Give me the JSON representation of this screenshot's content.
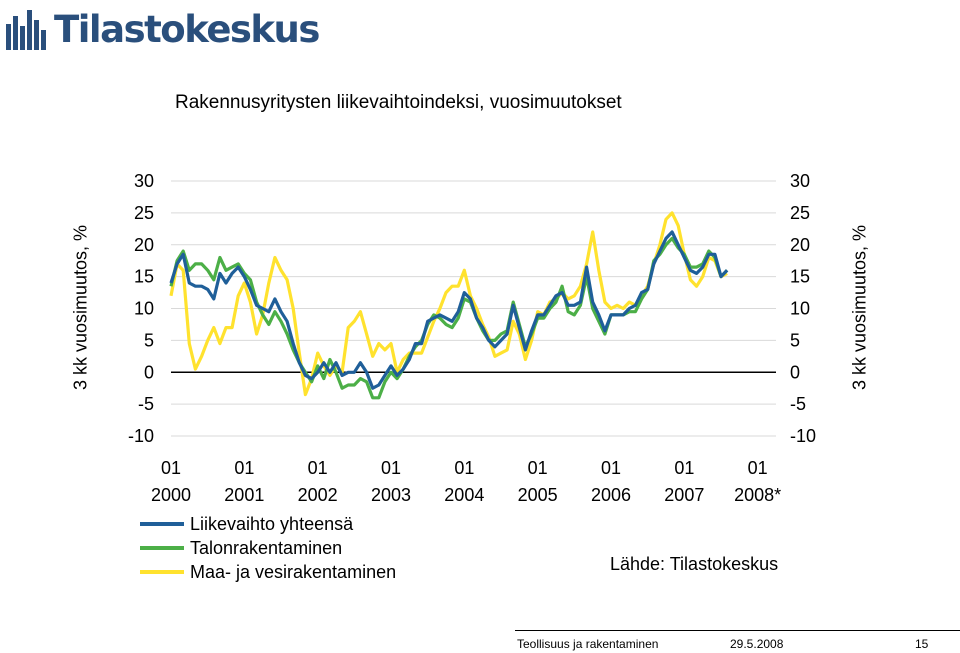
{
  "brand": {
    "name": "Tilastokeskus",
    "logo_color": "#2a4f7c"
  },
  "title": "Rakennusyritysten liikevaihtoindeksi, vuosimuutokset",
  "y_axis_left_label": "3 kk vuosimuutos, %",
  "y_axis_right_label": "3 kk vuosimuutos, %",
  "source": "Lähde: Tilastokeskus",
  "footer": {
    "section": "Teollisuus ja rakentaminen",
    "date": "29.5.2008",
    "page": "15"
  },
  "chart_data": {
    "type": "line",
    "title": "Rakennusyritysten liikevaihtoindeksi, vuosimuutokset",
    "ylabel": "3 kk vuosimuutos, %",
    "ylim": [
      -10,
      30
    ],
    "yticks": [
      "30",
      "25",
      "20",
      "15",
      "10",
      "5",
      "0",
      "-5",
      "-10"
    ],
    "xlim": [
      2000.0,
      2008.25
    ],
    "xticks": [
      {
        "month": "01",
        "year": "2000"
      },
      {
        "month": "01",
        "year": "2001"
      },
      {
        "month": "01",
        "year": "2002"
      },
      {
        "month": "01",
        "year": "2003"
      },
      {
        "month": "01",
        "year": "2004"
      },
      {
        "month": "01",
        "year": "2005"
      },
      {
        "month": "01",
        "year": "2006"
      },
      {
        "month": "01",
        "year": "2007"
      },
      {
        "month": "01",
        "year": "2008*"
      }
    ],
    "grid": "horizontal",
    "legend": "bottom-left",
    "series": [
      {
        "name": "Liikevaihto yhteensä",
        "color": "#1f5f99",
        "points": [
          [
            2000.0,
            14
          ],
          [
            2000.083,
            17
          ],
          [
            2000.167,
            18.5
          ],
          [
            2000.25,
            14
          ],
          [
            2000.333,
            13.5
          ],
          [
            2000.417,
            13.5
          ],
          [
            2000.5,
            13
          ],
          [
            2000.583,
            11.5
          ],
          [
            2000.667,
            15.5
          ],
          [
            2000.75,
            14
          ],
          [
            2000.833,
            15.5
          ],
          [
            2000.917,
            16.5
          ],
          [
            2001.0,
            15
          ],
          [
            2001.083,
            13
          ],
          [
            2001.167,
            10.5
          ],
          [
            2001.25,
            10
          ],
          [
            2001.333,
            9.5
          ],
          [
            2001.417,
            11.5
          ],
          [
            2001.5,
            9.5
          ],
          [
            2001.583,
            8
          ],
          [
            2001.667,
            4.5
          ],
          [
            2001.75,
            1.5
          ],
          [
            2001.833,
            -0.5
          ],
          [
            2001.917,
            -1
          ],
          [
            2002.0,
            0
          ],
          [
            2002.083,
            1.5
          ],
          [
            2002.167,
            0
          ],
          [
            2002.25,
            1.5
          ],
          [
            2002.333,
            -0.5
          ],
          [
            2002.417,
            0
          ],
          [
            2002.5,
            0
          ],
          [
            2002.583,
            1.5
          ],
          [
            2002.667,
            0
          ],
          [
            2002.75,
            -2.5
          ],
          [
            2002.833,
            -2
          ],
          [
            2002.917,
            -0.5
          ],
          [
            2003.0,
            1
          ],
          [
            2003.083,
            -0.5
          ],
          [
            2003.167,
            0.5
          ],
          [
            2003.25,
            2
          ],
          [
            2003.333,
            4.5
          ],
          [
            2003.417,
            4.5
          ],
          [
            2003.5,
            8
          ],
          [
            2003.583,
            8.5
          ],
          [
            2003.667,
            9
          ],
          [
            2003.75,
            8.5
          ],
          [
            2003.833,
            8
          ],
          [
            2003.917,
            9.5
          ],
          [
            2004.0,
            12.5
          ],
          [
            2004.083,
            11.5
          ],
          [
            2004.167,
            8.5
          ],
          [
            2004.25,
            7
          ],
          [
            2004.333,
            5
          ],
          [
            2004.417,
            4
          ],
          [
            2004.5,
            5
          ],
          [
            2004.583,
            6
          ],
          [
            2004.667,
            10.5
          ],
          [
            2004.75,
            7
          ],
          [
            2004.833,
            3.5
          ],
          [
            2004.917,
            6.5
          ],
          [
            2005.0,
            9
          ],
          [
            2005.083,
            9
          ],
          [
            2005.167,
            10.5
          ],
          [
            2005.25,
            12
          ],
          [
            2005.333,
            12.5
          ],
          [
            2005.417,
            10.5
          ],
          [
            2005.5,
            10.5
          ],
          [
            2005.583,
            11
          ],
          [
            2005.667,
            16.5
          ],
          [
            2005.75,
            11
          ],
          [
            2005.833,
            9
          ],
          [
            2005.917,
            6.5
          ],
          [
            2006.0,
            9
          ],
          [
            2006.083,
            9
          ],
          [
            2006.167,
            9
          ],
          [
            2006.25,
            10
          ],
          [
            2006.333,
            10.5
          ],
          [
            2006.417,
            12.5
          ],
          [
            2006.5,
            13
          ],
          [
            2006.583,
            17
          ],
          [
            2006.667,
            19
          ],
          [
            2006.75,
            21
          ],
          [
            2006.833,
            22
          ],
          [
            2006.917,
            20
          ],
          [
            2007.0,
            18
          ],
          [
            2007.083,
            16
          ],
          [
            2007.167,
            15.5
          ],
          [
            2007.25,
            16.5
          ],
          [
            2007.333,
            18.5
          ],
          [
            2007.417,
            18.5
          ],
          [
            2007.5,
            15
          ],
          [
            2007.583,
            16
          ]
        ]
      },
      {
        "name": "Talonrakentaminen",
        "color": "#4caf47",
        "points": [
          [
            2000.0,
            13.5
          ],
          [
            2000.083,
            17.5
          ],
          [
            2000.167,
            19
          ],
          [
            2000.25,
            16
          ],
          [
            2000.333,
            17
          ],
          [
            2000.417,
            17
          ],
          [
            2000.5,
            16
          ],
          [
            2000.583,
            14.5
          ],
          [
            2000.667,
            18
          ],
          [
            2000.75,
            16
          ],
          [
            2000.833,
            16.5
          ],
          [
            2000.917,
            17
          ],
          [
            2001.0,
            15.5
          ],
          [
            2001.083,
            14.5
          ],
          [
            2001.167,
            11
          ],
          [
            2001.25,
            9
          ],
          [
            2001.333,
            7.5
          ],
          [
            2001.417,
            9.5
          ],
          [
            2001.5,
            8
          ],
          [
            2001.583,
            6
          ],
          [
            2001.667,
            3.5
          ],
          [
            2001.75,
            1.5
          ],
          [
            2001.833,
            0
          ],
          [
            2001.917,
            -1.5
          ],
          [
            2002.0,
            1
          ],
          [
            2002.083,
            -1
          ],
          [
            2002.167,
            2
          ],
          [
            2002.25,
            0
          ],
          [
            2002.333,
            -2.5
          ],
          [
            2002.417,
            -2
          ],
          [
            2002.5,
            -2
          ],
          [
            2002.583,
            -1
          ],
          [
            2002.667,
            -1.5
          ],
          [
            2002.75,
            -4
          ],
          [
            2002.833,
            -4
          ],
          [
            2002.917,
            -1.5
          ],
          [
            2003.0,
            0
          ],
          [
            2003.083,
            -1
          ],
          [
            2003.167,
            0.5
          ],
          [
            2003.25,
            2.5
          ],
          [
            2003.333,
            4
          ],
          [
            2003.417,
            5
          ],
          [
            2003.5,
            7.5
          ],
          [
            2003.583,
            9
          ],
          [
            2003.667,
            8.5
          ],
          [
            2003.75,
            7.5
          ],
          [
            2003.833,
            7
          ],
          [
            2003.917,
            8.5
          ],
          [
            2004.0,
            11.5
          ],
          [
            2004.083,
            11
          ],
          [
            2004.167,
            8.5
          ],
          [
            2004.25,
            6.5
          ],
          [
            2004.333,
            5
          ],
          [
            2004.417,
            5
          ],
          [
            2004.5,
            6
          ],
          [
            2004.583,
            6.5
          ],
          [
            2004.667,
            11
          ],
          [
            2004.75,
            7.5
          ],
          [
            2004.833,
            4
          ],
          [
            2004.917,
            6
          ],
          [
            2005.0,
            8.5
          ],
          [
            2005.083,
            8.5
          ],
          [
            2005.167,
            10
          ],
          [
            2005.25,
            11
          ],
          [
            2005.333,
            13.5
          ],
          [
            2005.417,
            9.5
          ],
          [
            2005.5,
            9
          ],
          [
            2005.583,
            10.5
          ],
          [
            2005.667,
            15
          ],
          [
            2005.75,
            10
          ],
          [
            2005.833,
            8
          ],
          [
            2005.917,
            6
          ],
          [
            2006.0,
            9
          ],
          [
            2006.083,
            9
          ],
          [
            2006.167,
            9
          ],
          [
            2006.25,
            9.5
          ],
          [
            2006.333,
            9.5
          ],
          [
            2006.417,
            11.5
          ],
          [
            2006.5,
            13
          ],
          [
            2006.583,
            17.5
          ],
          [
            2006.667,
            18.5
          ],
          [
            2006.75,
            20
          ],
          [
            2006.833,
            21
          ],
          [
            2006.917,
            19.5
          ],
          [
            2007.0,
            18.5
          ],
          [
            2007.083,
            16.5
          ],
          [
            2007.167,
            16.5
          ],
          [
            2007.25,
            17
          ],
          [
            2007.333,
            19
          ],
          [
            2007.417,
            18
          ],
          [
            2007.5,
            15
          ],
          [
            2007.583,
            16
          ]
        ]
      },
      {
        "name": "Maa- ja vesirakentaminen",
        "color": "#ffe22e",
        "points": [
          [
            2000.0,
            12
          ],
          [
            2000.083,
            17
          ],
          [
            2000.167,
            16
          ],
          [
            2000.25,
            4.5
          ],
          [
            2000.333,
            0.5
          ],
          [
            2000.417,
            2.5
          ],
          [
            2000.5,
            5
          ],
          [
            2000.583,
            7
          ],
          [
            2000.667,
            4.5
          ],
          [
            2000.75,
            7
          ],
          [
            2000.833,
            7
          ],
          [
            2000.917,
            12
          ],
          [
            2001.0,
            14
          ],
          [
            2001.083,
            11
          ],
          [
            2001.167,
            6
          ],
          [
            2001.25,
            9
          ],
          [
            2001.333,
            14
          ],
          [
            2001.417,
            18
          ],
          [
            2001.5,
            16
          ],
          [
            2001.583,
            14.5
          ],
          [
            2001.667,
            10
          ],
          [
            2001.75,
            3
          ],
          [
            2001.833,
            -3.5
          ],
          [
            2001.917,
            -1
          ],
          [
            2002.0,
            3
          ],
          [
            2002.083,
            1
          ],
          [
            2002.167,
            -0.5
          ],
          [
            2002.25,
            1
          ],
          [
            2002.333,
            0
          ],
          [
            2002.417,
            7
          ],
          [
            2002.5,
            8
          ],
          [
            2002.583,
            9.5
          ],
          [
            2002.667,
            6
          ],
          [
            2002.75,
            2.5
          ],
          [
            2002.833,
            4.5
          ],
          [
            2002.917,
            3.5
          ],
          [
            2003.0,
            4.5
          ],
          [
            2003.083,
            0
          ],
          [
            2003.167,
            2
          ],
          [
            2003.25,
            3
          ],
          [
            2003.333,
            3
          ],
          [
            2003.417,
            3
          ],
          [
            2003.5,
            5.5
          ],
          [
            2003.583,
            8
          ],
          [
            2003.667,
            10
          ],
          [
            2003.75,
            12.5
          ],
          [
            2003.833,
            13.5
          ],
          [
            2003.917,
            13.5
          ],
          [
            2004.0,
            16
          ],
          [
            2004.083,
            12
          ],
          [
            2004.167,
            10
          ],
          [
            2004.25,
            7.5
          ],
          [
            2004.333,
            5.5
          ],
          [
            2004.417,
            2.5
          ],
          [
            2004.5,
            3
          ],
          [
            2004.583,
            3.5
          ],
          [
            2004.667,
            8
          ],
          [
            2004.75,
            6
          ],
          [
            2004.833,
            2
          ],
          [
            2004.917,
            5
          ],
          [
            2005.0,
            9.5
          ],
          [
            2005.083,
            9
          ],
          [
            2005.167,
            11
          ],
          [
            2005.25,
            11.5
          ],
          [
            2005.333,
            12.5
          ],
          [
            2005.417,
            11.5
          ],
          [
            2005.5,
            12
          ],
          [
            2005.583,
            13.5
          ],
          [
            2005.667,
            17
          ],
          [
            2005.75,
            22
          ],
          [
            2005.833,
            16
          ],
          [
            2005.917,
            11
          ],
          [
            2006.0,
            10
          ],
          [
            2006.083,
            10.5
          ],
          [
            2006.167,
            10
          ],
          [
            2006.25,
            11
          ],
          [
            2006.333,
            10.5
          ],
          [
            2006.417,
            12
          ],
          [
            2006.5,
            13.5
          ],
          [
            2006.583,
            17
          ],
          [
            2006.667,
            20
          ],
          [
            2006.75,
            24
          ],
          [
            2006.833,
            25
          ],
          [
            2006.917,
            23
          ],
          [
            2007.0,
            18.5
          ],
          [
            2007.083,
            14.5
          ],
          [
            2007.167,
            13.5
          ],
          [
            2007.25,
            15
          ],
          [
            2007.333,
            18
          ],
          [
            2007.417,
            17.5
          ],
          [
            2007.5,
            15
          ],
          [
            2007.583,
            15.5
          ]
        ]
      }
    ]
  }
}
